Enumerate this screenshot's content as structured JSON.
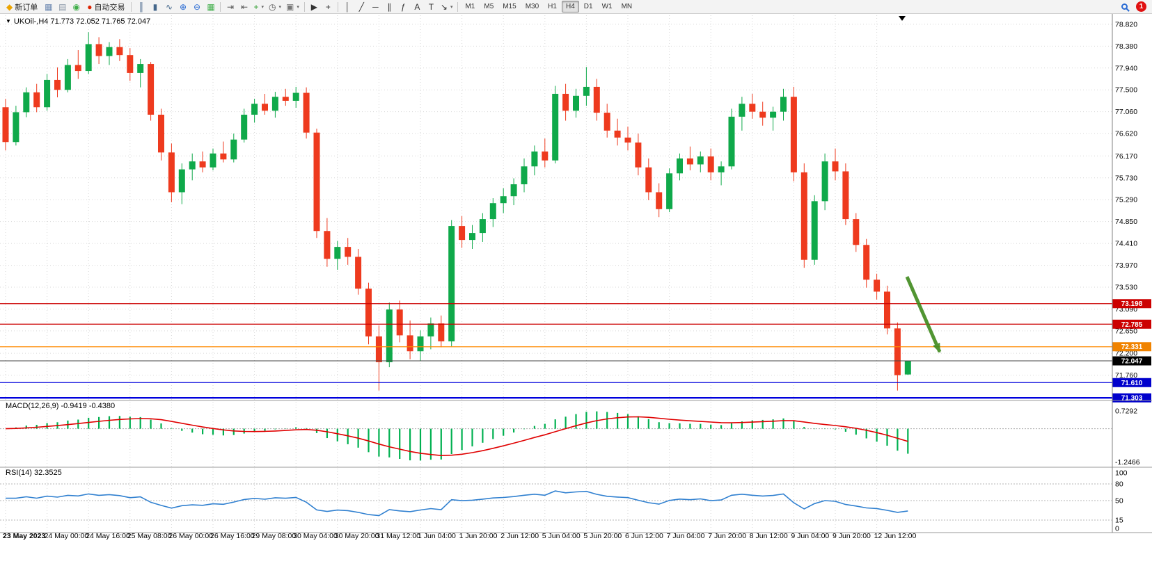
{
  "window": {
    "toolbar": {
      "items": [
        {
          "type": "button",
          "name": "new-order-button",
          "label": "新订单",
          "icon": "◆",
          "icon_color": "#eca400"
        },
        {
          "type": "icon",
          "name": "charts-icon",
          "icon": "▦",
          "icon_color": "#6b87b0"
        },
        {
          "type": "icon",
          "name": "profiles-icon",
          "icon": "▤",
          "icon_color": "#8b98a8"
        },
        {
          "type": "icon",
          "name": "signals-icon",
          "icon": "◉",
          "icon_color": "#3fae49"
        },
        {
          "type": "button",
          "name": "autotrading-button",
          "label": "自动交易",
          "icon": "●",
          "icon_color": "#dd2200"
        },
        {
          "type": "sep"
        },
        {
          "type": "icon",
          "name": "bar-chart-icon",
          "icon": "║",
          "icon_color": "#44668a"
        },
        {
          "type": "icon",
          "name": "candlestick-chart-icon",
          "icon": "▮",
          "icon_color": "#44668a"
        },
        {
          "type": "icon",
          "name": "line-chart-icon",
          "icon": "∿",
          "icon_color": "#44668a"
        },
        {
          "type": "icon",
          "name": "zoom-in-icon",
          "icon": "⊕",
          "icon_color": "#2b6cd4"
        },
        {
          "type": "icon",
          "name": "zoom-out-icon",
          "icon": "⊖",
          "icon_color": "#2b6cd4"
        },
        {
          "type": "icon",
          "name": "tile-windows-icon",
          "icon": "▦",
          "icon_color": "#3fae49"
        },
        {
          "type": "sep"
        },
        {
          "type": "icon",
          "name": "auto-scroll-icon",
          "icon": "⇥",
          "icon_color": "#555555"
        },
        {
          "type": "icon",
          "name": "chart-shift-icon",
          "icon": "⇤",
          "icon_color": "#555555"
        },
        {
          "type": "icon",
          "name": "indicators-icon",
          "icon": "+",
          "icon_color": "#2f9e2f",
          "arrow": true
        },
        {
          "type": "icon",
          "name": "periods-icon",
          "icon": "◷",
          "icon_color": "#555555",
          "arrow": true
        },
        {
          "type": "icon",
          "name": "templates-icon",
          "icon": "▣",
          "icon_color": "#777777",
          "arrow": true
        },
        {
          "type": "sep"
        },
        {
          "type": "icon",
          "name": "cursor-icon",
          "icon": "▶",
          "icon_color": "#333333"
        },
        {
          "type": "icon",
          "name": "crosshair-icon",
          "icon": "+",
          "icon_color": "#333333"
        },
        {
          "type": "sep"
        },
        {
          "type": "icon",
          "name": "vertical-line-icon",
          "icon": "│",
          "icon_color": "#333333"
        },
        {
          "type": "icon",
          "name": "trendline-icon",
          "icon": "╱",
          "icon_color": "#333333"
        },
        {
          "type": "icon",
          "name": "horizontal-line-icon",
          "icon": "─",
          "icon_color": "#333333"
        },
        {
          "type": "icon",
          "name": "equidistant-channel-icon",
          "icon": "∥",
          "icon_color": "#333333"
        },
        {
          "type": "icon",
          "name": "fibonacci-icon",
          "icon": "ƒ",
          "icon_color": "#333333"
        },
        {
          "type": "icon",
          "name": "text-icon",
          "icon": "A",
          "icon_color": "#333333"
        },
        {
          "type": "icon",
          "name": "text-label-icon",
          "icon": "T",
          "icon_color": "#333333"
        },
        {
          "type": "icon",
          "name": "arrows-icon",
          "icon": "↘",
          "icon_color": "#333333",
          "arrow": true
        },
        {
          "type": "sep"
        },
        {
          "type": "tf",
          "name": "timeframe-m1-button",
          "label": "M1"
        },
        {
          "type": "tf",
          "name": "timeframe-m5-button",
          "label": "M5"
        },
        {
          "type": "tf",
          "name": "timeframe-m15-button",
          "label": "M15"
        },
        {
          "type": "tf",
          "name": "timeframe-m30-button",
          "label": "M30"
        },
        {
          "type": "tf",
          "name": "timeframe-h1-button",
          "label": "H1"
        },
        {
          "type": "tf",
          "name": "timeframe-h4-button",
          "label": "H4",
          "active": true
        },
        {
          "type": "tf",
          "name": "timeframe-d1-button",
          "label": "D1"
        },
        {
          "type": "tf",
          "name": "timeframe-w1-button",
          "label": "W1"
        },
        {
          "type": "tf",
          "name": "timeframe-mn-button",
          "label": "MN"
        },
        {
          "type": "spacer"
        },
        {
          "type": "mag",
          "name": "search-button"
        },
        {
          "type": "badge",
          "name": "notification-badge",
          "label": "1",
          "color": "#e01010"
        }
      ]
    }
  },
  "chart": {
    "title": "UKOil-,H4 71.773 72.052 71.765 72.047",
    "symbol": "UKOil-",
    "timeframe": "H4",
    "dropdown_icon": "▼",
    "colors": {
      "up": "#0fa94a",
      "down": "#ee3a1e",
      "grid": "#d7d7d7",
      "macd_bar": "#00b050",
      "macd_signal": "#e00000",
      "rsi_line": "#3080d0"
    },
    "price_axis": {
      "labels": [
        "78.820",
        "78.380",
        "77.940",
        "77.500",
        "77.060",
        "76.620",
        "76.170",
        "75.730",
        "75.290",
        "74.850",
        "74.410",
        "73.970",
        "73.530",
        "73.090",
        "72.650",
        "72.200",
        "71.760"
      ]
    },
    "indicators": {
      "macd": {
        "label": "MACD(12,26,9) -0.9419 -0.4380",
        "params": [
          12,
          26,
          9
        ],
        "values": [
          "-0.9419",
          "-0.4380"
        ],
        "axis_labels": [
          "0.7292",
          "-1.2466"
        ]
      },
      "rsi": {
        "label": "RSI(14) 32.3525",
        "period": 14,
        "value": "32.3525",
        "axis_labels": [
          "100",
          "80",
          "50",
          "15",
          "0"
        ],
        "levels": [
          80,
          50,
          15
        ]
      }
    },
    "annotations": {
      "arrow": {
        "color": "#3f8a1c",
        "direction": "down-right"
      }
    }
  },
  "chart_data": {
    "type": "candlestick",
    "symbol": "UKOil-",
    "timeframe": "H4",
    "ohlc_display": {
      "open": "71.773",
      "high": "72.052",
      "low": "71.765",
      "close": "72.047"
    },
    "ylim": [
      71.25,
      79.0
    ],
    "x_label_every_n_candles": 4,
    "x_labels": [
      "23 May 2023",
      "24 May 00:00",
      "24 May 16:00",
      "25 May 08:00",
      "26 May 00:00",
      "26 May 16:00",
      "29 May 08:00",
      "30 May 04:00",
      "30 May 20:00",
      "31 May 12:00",
      "1 Jun 04:00",
      "1 Jun 20:00",
      "2 Jun 12:00",
      "5 Jun 04:00",
      "5 Jun 20:00",
      "6 Jun 12:00",
      "7 Jun 04:00",
      "7 Jun 20:00",
      "8 Jun 12:00",
      "9 Jun 04:00",
      "9 Jun 20:00",
      "12 Jun 12:00"
    ],
    "hlines": [
      {
        "value": 73.198,
        "label": "73.198",
        "line_color": "#cc0000",
        "tag_color": "#cc0000",
        "width": 1.2
      },
      {
        "value": 72.785,
        "label": "72.785",
        "line_color": "#cc0000",
        "tag_color": "#cc0000",
        "width": 1.2
      },
      {
        "value": 72.331,
        "label": "72.331",
        "line_color": "#ff8a00",
        "tag_color": "#f08300",
        "width": 1.2
      },
      {
        "value": 72.047,
        "label": "72.047",
        "line_color": "#444444",
        "tag_color": "#000000",
        "width": 1
      },
      {
        "value": 71.61,
        "label": "71.610",
        "line_color": "#0000dd",
        "tag_color": "#0000cc",
        "width": 1.2
      },
      {
        "value": 71.303,
        "label": "71.303",
        "line_color": "#0000dd",
        "tag_color": "#0000cc",
        "width": 2.4
      }
    ],
    "candles": [
      [
        77.15,
        77.32,
        76.28,
        76.45
      ],
      [
        76.45,
        77.18,
        76.38,
        77.05
      ],
      [
        77.05,
        77.55,
        76.95,
        77.45
      ],
      [
        77.45,
        77.62,
        77.05,
        77.15
      ],
      [
        77.15,
        77.82,
        77.08,
        77.7
      ],
      [
        77.7,
        77.95,
        77.35,
        77.5
      ],
      [
        77.5,
        78.12,
        77.45,
        78.0
      ],
      [
        78.0,
        78.3,
        77.72,
        77.88
      ],
      [
        77.88,
        78.66,
        77.82,
        78.42
      ],
      [
        78.42,
        78.56,
        78.02,
        78.18
      ],
      [
        78.18,
        78.46,
        78.0,
        78.36
      ],
      [
        78.36,
        78.52,
        78.08,
        78.2
      ],
      [
        78.2,
        78.34,
        77.68,
        77.84
      ],
      [
        77.84,
        78.12,
        77.55,
        78.02
      ],
      [
        78.02,
        78.06,
        76.88,
        77.0
      ],
      [
        77.0,
        77.12,
        76.08,
        76.24
      ],
      [
        76.24,
        76.42,
        75.24,
        75.44
      ],
      [
        75.44,
        76.02,
        75.2,
        75.9
      ],
      [
        75.9,
        76.22,
        75.68,
        76.06
      ],
      [
        76.06,
        76.26,
        75.84,
        75.94
      ],
      [
        75.94,
        76.32,
        75.88,
        76.22
      ],
      [
        76.22,
        76.46,
        76.04,
        76.1
      ],
      [
        76.1,
        76.62,
        76.04,
        76.5
      ],
      [
        76.5,
        77.12,
        76.44,
        77.0
      ],
      [
        77.0,
        77.32,
        76.84,
        77.22
      ],
      [
        77.22,
        77.42,
        77.0,
        77.08
      ],
      [
        77.08,
        77.46,
        76.94,
        77.36
      ],
      [
        77.36,
        77.52,
        77.18,
        77.28
      ],
      [
        77.28,
        77.56,
        77.14,
        77.44
      ],
      [
        77.44,
        77.55,
        76.52,
        76.64
      ],
      [
        76.64,
        76.72,
        74.52,
        74.66
      ],
      [
        74.66,
        74.92,
        73.94,
        74.1
      ],
      [
        74.1,
        74.46,
        73.88,
        74.34
      ],
      [
        74.34,
        74.52,
        73.98,
        74.14
      ],
      [
        74.14,
        74.3,
        73.38,
        73.5
      ],
      [
        73.5,
        73.62,
        72.38,
        72.54
      ],
      [
        72.54,
        72.76,
        71.45,
        72.02
      ],
      [
        72.02,
        73.22,
        71.92,
        73.08
      ],
      [
        73.08,
        73.26,
        72.42,
        72.56
      ],
      [
        72.56,
        72.86,
        72.08,
        72.24
      ],
      [
        72.24,
        72.66,
        72.04,
        72.54
      ],
      [
        72.54,
        72.92,
        72.28,
        72.8
      ],
      [
        72.8,
        72.96,
        72.32,
        72.44
      ],
      [
        72.44,
        74.88,
        72.34,
        74.76
      ],
      [
        74.76,
        74.96,
        74.32,
        74.48
      ],
      [
        74.48,
        74.78,
        74.3,
        74.62
      ],
      [
        74.62,
        75.02,
        74.44,
        74.9
      ],
      [
        74.9,
        75.32,
        74.74,
        75.22
      ],
      [
        75.22,
        75.52,
        75.02,
        75.36
      ],
      [
        75.36,
        75.72,
        75.18,
        75.6
      ],
      [
        75.6,
        76.12,
        75.44,
        75.96
      ],
      [
        75.96,
        76.38,
        75.78,
        76.26
      ],
      [
        76.26,
        76.52,
        75.94,
        76.08
      ],
      [
        76.08,
        77.58,
        76.02,
        77.42
      ],
      [
        77.42,
        77.62,
        76.88,
        77.08
      ],
      [
        77.08,
        77.52,
        76.94,
        77.38
      ],
      [
        77.38,
        77.96,
        77.18,
        77.56
      ],
      [
        77.56,
        77.72,
        76.88,
        77.04
      ],
      [
        77.04,
        77.22,
        76.54,
        76.68
      ],
      [
        76.68,
        76.92,
        76.38,
        76.54
      ],
      [
        76.54,
        76.76,
        76.28,
        76.44
      ],
      [
        76.44,
        76.62,
        75.78,
        75.94
      ],
      [
        75.94,
        76.12,
        75.28,
        75.44
      ],
      [
        75.44,
        75.62,
        74.94,
        75.1
      ],
      [
        75.1,
        75.92,
        75.04,
        75.82
      ],
      [
        75.82,
        76.22,
        75.68,
        76.12
      ],
      [
        76.12,
        76.36,
        75.88,
        76.0
      ],
      [
        76.0,
        76.26,
        75.84,
        76.16
      ],
      [
        76.16,
        76.32,
        75.68,
        75.84
      ],
      [
        75.84,
        76.06,
        75.58,
        75.96
      ],
      [
        75.96,
        77.12,
        75.9,
        76.96
      ],
      [
        76.96,
        77.36,
        76.68,
        77.22
      ],
      [
        77.22,
        77.42,
        76.92,
        77.06
      ],
      [
        77.06,
        77.26,
        76.78,
        76.94
      ],
      [
        76.94,
        77.16,
        76.68,
        77.06
      ],
      [
        77.06,
        77.52,
        76.88,
        77.36
      ],
      [
        77.36,
        77.56,
        75.66,
        75.84
      ],
      [
        75.84,
        76.02,
        73.92,
        74.08
      ],
      [
        74.08,
        75.38,
        73.98,
        75.26
      ],
      [
        75.26,
        76.22,
        75.08,
        76.06
      ],
      [
        76.06,
        76.32,
        75.68,
        75.86
      ],
      [
        75.86,
        76.02,
        74.78,
        74.9
      ],
      [
        74.9,
        75.02,
        74.24,
        74.38
      ],
      [
        74.38,
        74.5,
        73.52,
        73.68
      ],
      [
        73.68,
        73.8,
        73.28,
        73.44
      ],
      [
        73.44,
        73.56,
        72.58,
        72.7
      ],
      [
        72.7,
        72.82,
        71.45,
        71.76
      ],
      [
        71.773,
        72.052,
        71.765,
        72.047
      ]
    ]
  }
}
